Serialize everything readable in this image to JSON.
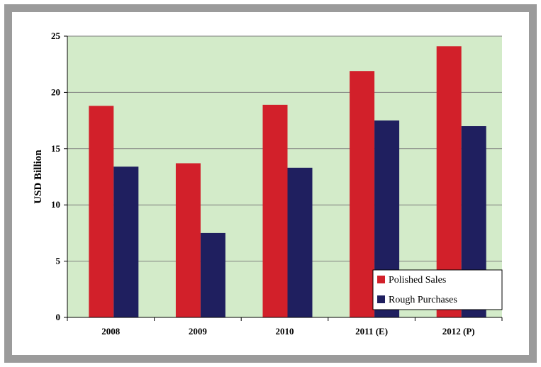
{
  "chart_data": {
    "type": "bar",
    "categories": [
      "2008",
      "2009",
      "2010",
      "2011 (E)",
      "2012 (P)"
    ],
    "series": [
      {
        "name": "Polished Sales",
        "values": [
          18.8,
          13.7,
          18.9,
          21.9,
          24.1
        ],
        "color": "#d2202a"
      },
      {
        "name": "Rough Purchases",
        "values": [
          13.4,
          7.5,
          13.3,
          17.5,
          17.0
        ],
        "color": "#1f1f5f"
      }
    ],
    "title": "",
    "xlabel": "",
    "ylabel": "USD Billion",
    "ylim": [
      0,
      25
    ],
    "yticks": [
      0,
      5,
      10,
      15,
      20,
      25
    ],
    "grid": true,
    "legend_position": "bottom-right",
    "plot_background": "#d3ebc9",
    "frame_color": "#9b9b9b"
  }
}
